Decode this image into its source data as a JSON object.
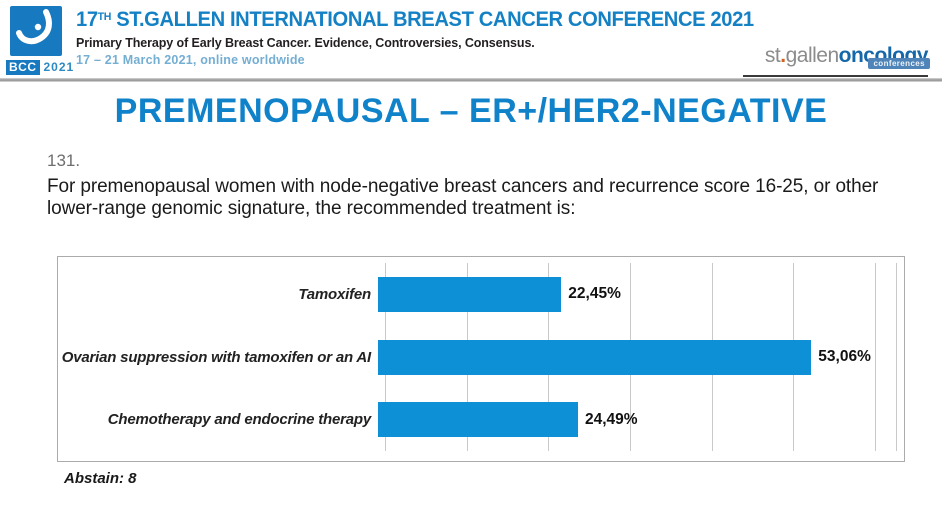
{
  "header": {
    "logo": {
      "badge": "BCC",
      "year": "2021"
    },
    "title_num": "17",
    "title_sup": "TH",
    "title_rest": " ST.GALLEN INTERNATIONAL BREAST CANCER CONFERENCE 2021",
    "subtitle": "Primary Therapy of Early Breast Cancer. Evidence, Controversies, Consensus.",
    "dates": "17 – 21 March 2021, online worldwide",
    "brand": {
      "st": "st",
      "dot": ".",
      "gallen": "gallen",
      "oncology": "oncology",
      "conferences": "conferences"
    }
  },
  "slide": {
    "title": "PREMENOPAUSAL – ER+/HER2-NEGATIVE",
    "question_number": "131.",
    "question_text": "For premenopausal women with node-negative breast cancers and recurrence score 16-25, or other lower-range genomic signature, the recommended treatment is:",
    "abstain_label": "Abstain: 8"
  },
  "chart_data": {
    "type": "bar",
    "orientation": "horizontal",
    "categories": [
      "Tamoxifen",
      "Ovarian suppression with tamoxifen or an AI",
      "Chemotherapy and endocrine therapy"
    ],
    "values": [
      22.45,
      53.06,
      24.49
    ],
    "value_labels": [
      "22,45%",
      "53,06%",
      "24,49%"
    ],
    "xlim": [
      0,
      60
    ],
    "gridline_interval": 10,
    "grid_on": true,
    "bar_color": "#0e90d7",
    "abstain_count": 8
  },
  "colors": {
    "conference_blue": "#1581c5",
    "title_blue": "#0f82ca",
    "bar_blue": "#0e90d7",
    "dates_blue": "#74aed3",
    "brand_gray": "#8c8c8c",
    "brand_orange": "#d4611e",
    "brand_dark_blue": "#1467a8"
  }
}
